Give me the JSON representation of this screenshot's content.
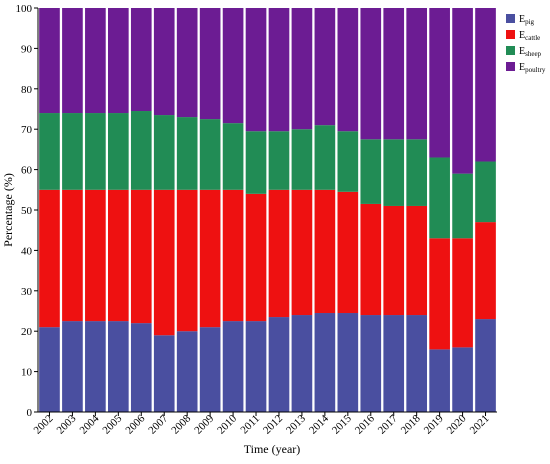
{
  "chart_data": {
    "type": "bar",
    "stacked": true,
    "xlabel": "Time (year)",
    "ylabel": "Percentage (%)",
    "ylim": [
      0,
      100
    ],
    "yticks": [
      0,
      10,
      20,
      30,
      40,
      50,
      60,
      70,
      80,
      90,
      100
    ],
    "grid": false,
    "legend_position": "top-right",
    "categories": [
      "2002",
      "2003",
      "2004",
      "2005",
      "2006",
      "2007",
      "2008",
      "2009",
      "2010",
      "2011",
      "2012",
      "2013",
      "2014",
      "2015",
      "2016",
      "2017",
      "2018",
      "2019",
      "2020",
      "2021"
    ],
    "series": [
      {
        "name": "E",
        "sub": "pig",
        "color": "#4a4fa0",
        "values": [
          21.0,
          22.5,
          22.5,
          22.5,
          22.0,
          19.0,
          20.0,
          21.0,
          22.5,
          22.5,
          23.5,
          24.0,
          24.5,
          24.5,
          24.0,
          24.0,
          24.0,
          15.5,
          16.0,
          23.0
        ]
      },
      {
        "name": "E",
        "sub": "cattle",
        "color": "#ee1111",
        "values": [
          34.0,
          32.5,
          32.5,
          32.5,
          33.0,
          36.0,
          35.0,
          34.0,
          32.5,
          31.5,
          31.5,
          31.0,
          30.5,
          30.0,
          27.5,
          27.0,
          27.0,
          27.5,
          27.0,
          24.0
        ]
      },
      {
        "name": "E",
        "sub": "sheep",
        "color": "#218c55",
        "values": [
          19.0,
          19.0,
          19.0,
          19.0,
          19.5,
          18.5,
          18.0,
          17.5,
          16.5,
          15.5,
          14.5,
          15.0,
          16.0,
          15.0,
          16.0,
          16.5,
          16.5,
          20.0,
          16.0,
          15.0
        ]
      },
      {
        "name": "E",
        "sub": "poultry",
        "color": "#6c1c93",
        "values": [
          26.0,
          26.0,
          26.0,
          26.0,
          25.5,
          26.5,
          27.0,
          27.5,
          28.5,
          30.5,
          30.5,
          30.0,
          29.0,
          30.5,
          32.5,
          32.5,
          32.5,
          37.0,
          41.0,
          38.0
        ]
      }
    ]
  }
}
